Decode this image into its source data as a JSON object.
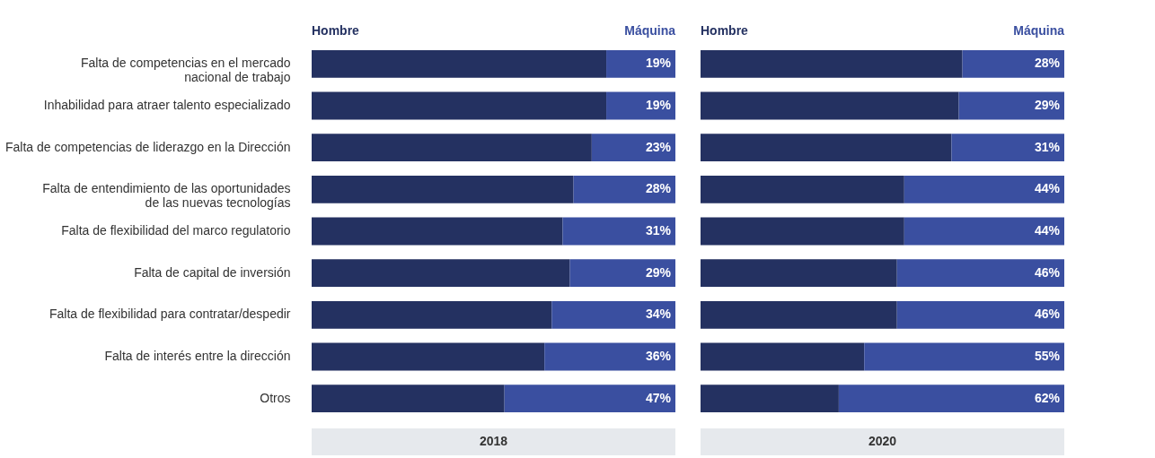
{
  "chart_data": [
    {
      "type": "bar",
      "orientation": "horizontal",
      "stacked": true,
      "title": "2018",
      "legend": "top",
      "xlim": [
        0,
        100
      ],
      "categories": [
        "Falta de competencias en el mercado\nnacional de trabajo",
        "Inhabilidad para atraer talento especializado",
        "Falta de competencias de liderazgo en la Dirección",
        "Falta de entendimiento de las oportunidades\nde las nuevas tecnologías",
        "Falta de flexibilidad del marco regulatorio",
        "Falta de capital de inversión",
        "Falta de flexibilidad para contratar/despedir",
        "Falta de interés entre la dirección",
        "Otros"
      ],
      "series": [
        {
          "name": "Hombre",
          "color": "#243161",
          "values": [
            81,
            81,
            77,
            72,
            69,
            71,
            66,
            64,
            53
          ]
        },
        {
          "name": "Máquina",
          "color": "#3a4fa0",
          "values": [
            19,
            19,
            23,
            28,
            31,
            29,
            34,
            36,
            47
          ],
          "value_labels": [
            "19%",
            "19%",
            "23%",
            "28%",
            "31%",
            "29%",
            "34%",
            "36%",
            "47%"
          ]
        }
      ]
    },
    {
      "type": "bar",
      "orientation": "horizontal",
      "stacked": true,
      "title": "2020",
      "legend": "top",
      "xlim": [
        0,
        100
      ],
      "tick_labels": false,
      "categories": [
        null,
        null,
        null,
        null,
        null,
        null,
        null,
        null,
        null
      ],
      "series": [
        {
          "name": "Hombre",
          "color": "#243161",
          "values": [
            72,
            71,
            69,
            56,
            56,
            54,
            54,
            45,
            38
          ]
        },
        {
          "name": "Máquina",
          "color": "#3a4fa0",
          "values": [
            28,
            29,
            31,
            44,
            44,
            46,
            46,
            55,
            62
          ],
          "value_labels": [
            "28%",
            "29%",
            "31%",
            "44%",
            "44%",
            "46%",
            "46%",
            "55%",
            "62%"
          ]
        }
      ]
    }
  ]
}
